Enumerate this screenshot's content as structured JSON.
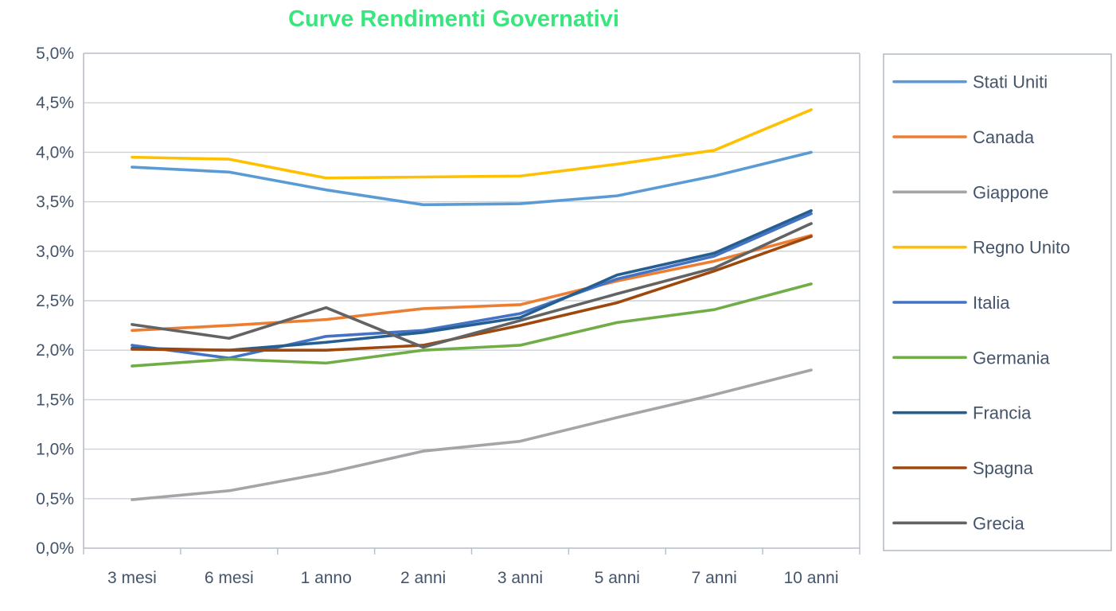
{
  "chart_data": {
    "type": "line",
    "title": "Curve Rendimenti Governativi",
    "title_color": "#39e57d",
    "categories": [
      "3 mesi",
      "6 mesi",
      "1 anno",
      "2 anni",
      "3 anni",
      "5 anni",
      "7 anni",
      "10 anni"
    ],
    "y_tick_labels": [
      "5,0%",
      "4,5%",
      "4,0%",
      "3,5%",
      "3,0%",
      "2,5%",
      "2,0%",
      "1,5%",
      "1,0%",
      "0,5%",
      "0,0%"
    ],
    "ylim": [
      0.0,
      5.0
    ],
    "y_step": 0.5,
    "grid": "horizontal",
    "legend_position": "right",
    "axis_text_color": "#44546A",
    "gridline_color": "#ccd1d8",
    "plot_border_color": "#b7bdc6",
    "series": [
      {
        "name": "Stati Uniti",
        "color": "#5B9BD5",
        "values": [
          3.85,
          3.8,
          3.62,
          3.47,
          3.48,
          3.56,
          3.76,
          4.0
        ]
      },
      {
        "name": "Canada",
        "color": "#ED7D31",
        "values": [
          2.2,
          2.25,
          2.31,
          2.42,
          2.46,
          2.7,
          2.9,
          3.16
        ]
      },
      {
        "name": "Giappone",
        "color": "#A5A5A5",
        "values": [
          0.49,
          0.58,
          0.76,
          0.98,
          1.08,
          1.32,
          1.55,
          1.8
        ]
      },
      {
        "name": "Regno Unito",
        "color": "#FFC000",
        "values": [
          3.95,
          3.93,
          3.74,
          3.75,
          3.76,
          3.88,
          4.02,
          4.43
        ]
      },
      {
        "name": "Italia",
        "color": "#4472C4",
        "values": [
          2.05,
          1.92,
          2.14,
          2.2,
          2.37,
          2.72,
          2.95,
          3.38
        ]
      },
      {
        "name": "Germania",
        "color": "#70AD47",
        "values": [
          1.84,
          1.91,
          1.87,
          2.0,
          2.05,
          2.28,
          2.41,
          2.67
        ]
      },
      {
        "name": "Francia",
        "color": "#255E91",
        "values": [
          2.02,
          2.0,
          2.08,
          2.18,
          2.33,
          2.76,
          2.98,
          3.41
        ]
      },
      {
        "name": "Spagna",
        "color": "#9E480E",
        "values": [
          2.01,
          2.0,
          2.0,
          2.05,
          2.25,
          2.48,
          2.8,
          3.15
        ]
      },
      {
        "name": "Grecia",
        "color": "#636363",
        "values": [
          2.26,
          2.12,
          2.43,
          2.03,
          2.3,
          2.57,
          2.83,
          3.28
        ]
      }
    ]
  }
}
